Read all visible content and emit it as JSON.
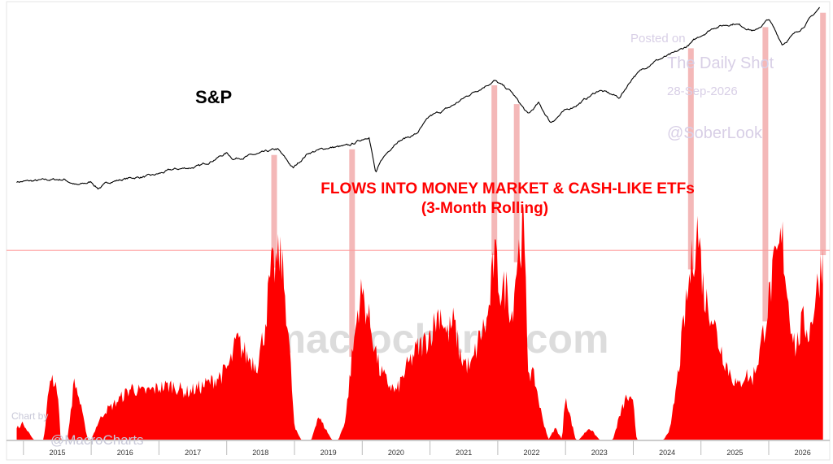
{
  "chart_data": {
    "type": "line+area",
    "title": "FLOWS INTO MONEY MARKET & CASH-LIKE ETFs",
    "subtitle": "(3-Month Rolling)",
    "series_label_top": "S&P",
    "x_tick_labels": [
      "2015",
      "2016",
      "2017",
      "2018",
      "2019",
      "2020",
      "2021",
      "2022",
      "2023",
      "2024",
      "2025",
      "2026"
    ],
    "series": [
      {
        "name": "S&P",
        "kind": "line",
        "color": "#000000",
        "x": [
          2014.9,
          2015.2,
          2015.4,
          2015.6,
          2015.8,
          2016.0,
          2016.1,
          2016.3,
          2016.6,
          2016.9,
          2017.2,
          2017.6,
          2018.0,
          2018.1,
          2018.5,
          2018.75,
          2018.98,
          2019.2,
          2019.5,
          2019.8,
          2020.1,
          2020.2,
          2020.3,
          2020.5,
          2020.8,
          2021.0,
          2021.3,
          2021.6,
          2021.95,
          2022.2,
          2022.45,
          2022.6,
          2022.78,
          2022.95,
          2023.2,
          2023.5,
          2023.8,
          2024.0,
          2024.3,
          2024.6,
          2024.8,
          2025.0,
          2025.2,
          2025.5,
          2025.8,
          2026.0,
          2026.2,
          2026.5,
          2026.75
        ],
        "y": [
          2050,
          2070,
          2100,
          2110,
          1950,
          2040,
          1880,
          2060,
          2150,
          2200,
          2360,
          2450,
          2800,
          2650,
          2780,
          2900,
          2400,
          2800,
          2940,
          2980,
          3250,
          2260,
          2650,
          3100,
          3300,
          3750,
          4000,
          4350,
          4700,
          4400,
          3800,
          4100,
          3600,
          3850,
          4100,
          4450,
          4250,
          4800,
          5200,
          5400,
          5600,
          5880,
          6100,
          6200,
          5990,
          6300,
          5650,
          6100,
          6600
        ]
      },
      {
        "name": "Flows into money market & cash-like ETFs (3-month rolling)",
        "kind": "area",
        "color": "#ff0000",
        "x": [
          2014.9,
          2015.0,
          2015.1,
          2015.15,
          2015.3,
          2015.4,
          2015.5,
          2015.55,
          2015.65,
          2015.75,
          2015.8,
          2015.95,
          2016.0,
          2016.1,
          2016.2,
          2016.3,
          2016.45,
          2016.6,
          2016.75,
          2016.9,
          2017.0,
          2017.2,
          2017.4,
          2017.6,
          2017.8,
          2017.95,
          2018.05,
          2018.15,
          2018.3,
          2018.45,
          2018.55,
          2018.65,
          2018.8,
          2018.9,
          2019.0,
          2019.1,
          2019.25,
          2019.35,
          2019.45,
          2019.55,
          2019.65,
          2019.75,
          2019.85,
          2019.95,
          2020.0,
          2020.15,
          2020.25,
          2020.35,
          2020.5,
          2020.65,
          2020.8,
          2020.95,
          2021.05,
          2021.15,
          2021.25,
          2021.35,
          2021.45,
          2021.6,
          2021.75,
          2021.85,
          2021.95,
          2022.05,
          2022.15,
          2022.2,
          2022.28,
          2022.38,
          2022.45,
          2022.55,
          2022.65,
          2022.75,
          2022.85,
          2022.95,
          2023.0,
          2023.05,
          2023.15,
          2023.2,
          2023.35,
          2023.5,
          2023.6,
          2023.7,
          2023.8,
          2023.9,
          2024.0,
          2024.05,
          2024.15,
          2024.25,
          2024.35,
          2024.45,
          2024.55,
          2024.65,
          2024.75,
          2024.85,
          2024.95,
          2025.05,
          2025.15,
          2025.25,
          2025.4,
          2025.55,
          2025.65,
          2025.75,
          2025.85,
          2025.95,
          2026.05,
          2026.2,
          2026.3,
          2026.4,
          2026.5,
          2026.6,
          2026.7,
          2026.8
        ],
        "y": [
          0.05,
          0.07,
          0.02,
          0,
          0,
          0.28,
          0.22,
          0,
          0,
          0.25,
          0.2,
          0,
          0,
          0.07,
          0.12,
          0.14,
          0.18,
          0.22,
          0.2,
          0.21,
          0.22,
          0.23,
          0.2,
          0.22,
          0.25,
          0.28,
          0.32,
          0.42,
          0.35,
          0.32,
          0.45,
          0.7,
          0.78,
          0.5,
          0.05,
          0,
          0,
          0.1,
          0.05,
          0,
          0,
          0.08,
          0.35,
          0.58,
          0.62,
          0.45,
          0.3,
          0.25,
          0.2,
          0.3,
          0.38,
          0.42,
          0.48,
          0.55,
          0.44,
          0.5,
          0.35,
          0.3,
          0.45,
          0.5,
          0.78,
          0.62,
          0.65,
          0.5,
          0.75,
          0.9,
          0.3,
          0.25,
          0.1,
          0,
          0.05,
          0,
          0.2,
          0.12,
          0,
          0,
          0.05,
          0,
          0,
          0,
          0.1,
          0.18,
          0.15,
          0,
          0,
          0,
          0,
          0,
          0.05,
          0.25,
          0.5,
          0.72,
          0.9,
          0.6,
          0.55,
          0.42,
          0.3,
          0.22,
          0.28,
          0.25,
          0.35,
          0.5,
          0.68,
          0.85,
          0.55,
          0.38,
          0.5,
          0.45,
          0.62,
          0.78
        ]
      }
    ],
    "reference_line": {
      "y": 0.8,
      "color": "#ff9999"
    },
    "highlight_bands": [
      2018.7,
      2019.85,
      2021.95,
      2022.28,
      2024.85,
      2025.95,
      2026.8
    ],
    "xlim": [
      2014.75,
      2026.9
    ],
    "ylim_sp": [
      1700,
      6700
    ],
    "ylim_flows": [
      0,
      1.0
    ],
    "grid": false,
    "legend": "none"
  },
  "watermark": "macrocharts.com",
  "credit": {
    "posted_on": "Posted on",
    "source": "The Daily Shot",
    "date": "28-Sep-2026",
    "handle": "@SoberLook"
  },
  "chart_by": {
    "label": "Chart by",
    "handle": "@MacroCharts"
  },
  "colors": {
    "sp_line": "#000000",
    "flows_area": "#ff0000",
    "highlight": "#f4b8b8",
    "title": "#ff0000",
    "watermark": "#dcdcdc"
  }
}
